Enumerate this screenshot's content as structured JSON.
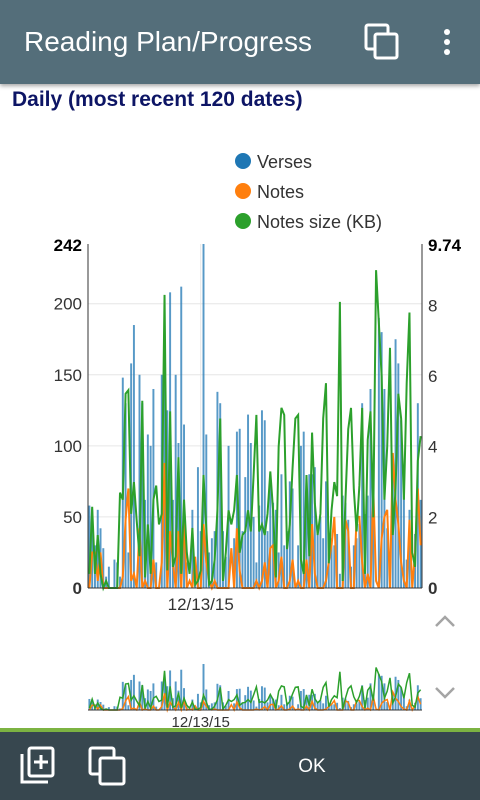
{
  "appbar": {
    "title": "Reading Plan/Progress",
    "copy_icon": "copy-icon",
    "more_icon": "more-vert-icon"
  },
  "section_title": "Daily (most recent 120 dates)",
  "colors": {
    "appbar": "#546e7a",
    "bottombar": "#37474f",
    "accent": "#7cb342",
    "verses": "#1f77b4",
    "notes": "#ff7f0e",
    "notes_size": "#2ca02c",
    "section_title": "#0d1565"
  },
  "chart_data": {
    "type": "bar",
    "title": "",
    "legend": [
      "Verses",
      "Notes",
      "Notes size (KB)"
    ],
    "legend_position": "top-center",
    "x_tick_label": "12/13/15",
    "left_axis": {
      "max_label": "242",
      "ticks": [
        "200",
        "150",
        "100",
        "50",
        "0"
      ],
      "ylim": [
        0,
        242
      ]
    },
    "right_axis": {
      "max_label": "9.74",
      "ticks": [
        "8",
        "6",
        "4",
        "2",
        "0"
      ],
      "ylim": [
        0,
        9.74
      ]
    },
    "grid": true,
    "series": [
      {
        "name": "Verses",
        "type": "bar",
        "axis": "left",
        "values": [
          58,
          55,
          30,
          55,
          42,
          28,
          8,
          15,
          0,
          20,
          18,
          8,
          148,
          130,
          25,
          158,
          185,
          0,
          150,
          130,
          62,
          108,
          100,
          140,
          18,
          0,
          150,
          175,
          125,
          208,
          62,
          150,
          102,
          212,
          115,
          18,
          0,
          55,
          20,
          85,
          40,
          242,
          108,
          25,
          35,
          40,
          138,
          130,
          40,
          22,
          100,
          0,
          35,
          110,
          112,
          40,
          78,
          122,
          102,
          50,
          18,
          58,
          125,
          118,
          40,
          80,
          60,
          55,
          25,
          80,
          30,
          40,
          75,
          70,
          0,
          30,
          100,
          110,
          60,
          80,
          80,
          85,
          42,
          50,
          35,
          75,
          25,
          35,
          30,
          38,
          10,
          65,
          60,
          48,
          15,
          30,
          35,
          45,
          130,
          52,
          65,
          140,
          58,
          0,
          190,
          180,
          140,
          42,
          22,
          82,
          175,
          158,
          118,
          65,
          20,
          55,
          0,
          38,
          130,
          62
        ]
      },
      {
        "name": "Notes",
        "type": "line",
        "axis": "left",
        "values": [
          0,
          25,
          25,
          5,
          25,
          0,
          0,
          0,
          0,
          0,
          0,
          0,
          8,
          48,
          70,
          5,
          10,
          0,
          42,
          0,
          5,
          0,
          0,
          20,
          0,
          0,
          18,
          88,
          0,
          40,
          18,
          0,
          40,
          0,
          48,
          0,
          5,
          0,
          22,
          0,
          0,
          45,
          18,
          5,
          0,
          5,
          0,
          0,
          0,
          0,
          0,
          28,
          0,
          42,
          12,
          0,
          0,
          0,
          0,
          0,
          5,
          0,
          5,
          18,
          0,
          28,
          30,
          0,
          5,
          22,
          0,
          0,
          5,
          20,
          0,
          5,
          0,
          0,
          20,
          0,
          45,
          10,
          0,
          0,
          0,
          5,
          18,
          30,
          50,
          0,
          0,
          0,
          48,
          40,
          0,
          0,
          50,
          50,
          18,
          0,
          10,
          0,
          70,
          5,
          0,
          35,
          50,
          55,
          0,
          95,
          62,
          45,
          18,
          5,
          0,
          48,
          0,
          25,
          70,
          30
        ]
      },
      {
        "name": "Notes size (KB)",
        "type": "line",
        "axis": "right",
        "values": [
          0.4,
          2.3,
          0.4,
          1.5,
          0.4,
          0,
          0.2,
          0,
          0,
          0,
          0,
          2.7,
          2.5,
          5.5,
          5.6,
          2.1,
          3.0,
          1.9,
          0.9,
          5.3,
          0.3,
          1.8,
          0.4,
          2.5,
          2.9,
          1.8,
          2.1,
          8.3,
          0.5,
          5.0,
          0.6,
          0.9,
          3.7,
          0.4,
          2.5,
          1.0,
          0.4,
          1.7,
          0.1,
          0.2,
          0.5,
          3.2,
          1.7,
          0.1,
          0.2,
          0.8,
          2.2,
          4.8,
          0.2,
          1.0,
          2.2,
          1.8,
          2.2,
          3.2,
          1.0,
          1.5,
          1.6,
          2.2,
          1.6,
          3.2,
          4.9,
          1.6,
          1.8,
          1.5,
          2.1,
          3.3,
          2.2,
          0.3,
          4.0,
          5.1,
          4.9,
          1.1,
          1.8,
          3.4,
          4.8,
          4.9,
          0.8,
          0.4,
          3.2,
          0.9,
          4.4,
          2.4,
          1.5,
          2.1,
          4.8,
          5.8,
          0.7,
          2.2,
          3.0,
          2.6,
          8.1,
          0.2,
          2.5,
          4.5,
          5.1,
          2.8,
          1.6,
          2.9,
          5.1,
          0.4,
          4.2,
          5.0,
          2.0,
          9.0,
          7.5,
          6.0,
          2.5,
          4.0,
          6.8,
          1.5,
          2.8,
          5.5,
          4.8,
          2.5,
          5.8,
          7.8,
          1.0,
          0.6,
          3.6,
          4.3
        ]
      }
    ]
  },
  "bottombar": {
    "add_icon": "add-to-collection-icon",
    "copy_icon": "copy-icon",
    "ok_label": "OK"
  }
}
